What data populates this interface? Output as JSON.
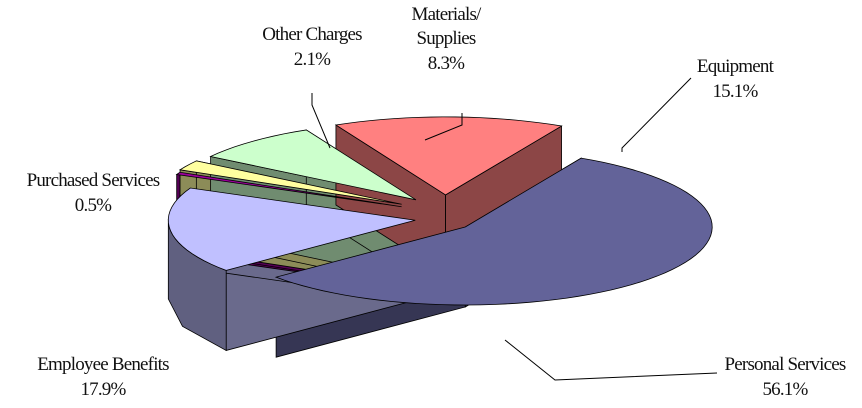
{
  "chart_data": {
    "type": "pie",
    "style": "3d-exploded",
    "slices": [
      {
        "id": "personal-services",
        "name": "Personal Services",
        "pct_label": "56.1%",
        "value": 56.1,
        "color": "#636399"
      },
      {
        "id": "employee-benefits",
        "name": "Employee Benefits",
        "pct_label": "17.9%",
        "value": 17.9,
        "color": "#c0c0ff"
      },
      {
        "id": "purchased-services",
        "name": "Purchased Services",
        "pct_label": "0.5%",
        "value": 0.5,
        "color": "#990099"
      },
      {
        "id": "other-charges",
        "name": "Other Charges",
        "pct_label": "2.1%",
        "value": 2.1,
        "color": "#ffffa0"
      },
      {
        "id": "materials-supplies",
        "name": "Materials/\nSupplies",
        "pct_label": "8.3%",
        "value": 8.3,
        "color": "#ccffcc"
      },
      {
        "id": "equipment",
        "name": "Equipment",
        "pct_label": "15.1%",
        "value": 15.1,
        "color": "#ff8080"
      }
    ]
  }
}
